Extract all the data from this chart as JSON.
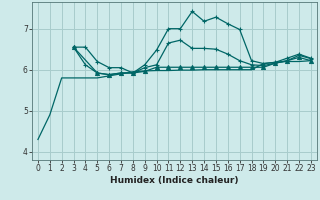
{
  "bg_color": "#ceeaea",
  "grid_color": "#a8cccc",
  "line_color": "#006666",
  "xlabel": "Humidex (Indice chaleur)",
  "ylim": [
    3.8,
    7.65
  ],
  "xlim": [
    -0.5,
    23.5
  ],
  "yticks": [
    4,
    5,
    6,
    7
  ],
  "xticks": [
    0,
    1,
    2,
    3,
    4,
    5,
    6,
    7,
    8,
    9,
    10,
    11,
    12,
    13,
    14,
    15,
    16,
    17,
    18,
    19,
    20,
    21,
    22,
    23
  ],
  "series1_x": [
    0,
    1,
    2,
    3,
    4,
    5,
    6,
    7,
    8,
    9,
    10,
    11,
    12,
    13,
    14,
    15,
    16,
    17,
    18,
    19,
    20,
    21,
    22,
    23
  ],
  "series1_y": [
    4.3,
    4.9,
    5.8,
    5.8,
    5.8,
    5.8,
    5.85,
    5.9,
    5.95,
    5.97,
    5.98,
    5.98,
    5.99,
    5.99,
    6.0,
    6.0,
    6.0,
    6.0,
    6.0,
    6.15,
    6.18,
    6.2,
    6.2,
    6.22
  ],
  "series2_x": [
    3,
    4,
    5,
    6,
    7,
    8,
    9,
    10,
    11,
    12,
    13,
    14,
    15,
    16,
    17,
    18,
    19,
    20,
    21,
    22,
    23
  ],
  "series2_y": [
    6.55,
    6.55,
    6.2,
    6.05,
    6.05,
    5.92,
    6.12,
    6.48,
    7.0,
    7.0,
    7.42,
    7.18,
    7.28,
    7.12,
    6.98,
    6.22,
    6.15,
    6.18,
    6.28,
    6.38,
    6.28
  ],
  "series3_x": [
    3,
    4,
    5,
    6,
    7,
    8,
    9,
    10,
    11,
    12,
    13,
    14,
    15,
    16,
    17,
    18,
    19,
    20,
    21,
    22,
    23
  ],
  "series3_y": [
    6.55,
    6.12,
    5.92,
    5.88,
    5.92,
    5.92,
    6.05,
    6.12,
    6.65,
    6.72,
    6.52,
    6.52,
    6.5,
    6.38,
    6.22,
    6.12,
    6.1,
    6.16,
    6.22,
    6.35,
    6.27
  ],
  "series4_x": [
    3,
    5,
    6,
    7,
    8,
    9,
    10,
    11,
    12,
    13,
    14,
    15,
    16,
    17,
    18,
    19,
    20,
    21,
    22,
    23
  ],
  "series4_y": [
    6.55,
    5.92,
    5.88,
    5.92,
    5.92,
    5.96,
    6.06,
    6.06,
    6.06,
    6.06,
    6.06,
    6.06,
    6.06,
    6.06,
    6.06,
    6.06,
    6.16,
    6.22,
    6.3,
    6.22
  ]
}
